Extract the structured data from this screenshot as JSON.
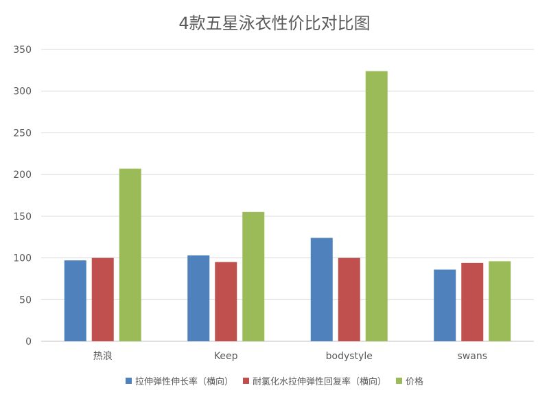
{
  "chart_data": {
    "type": "bar",
    "title": "4款五星泳衣性价比对比图",
    "categories": [
      "热浪",
      "Keep",
      "bodystyle",
      "swans"
    ],
    "series": [
      {
        "name": "拉伸弹性伸长率（横向）",
        "color": "#4f81bd",
        "values": [
          97,
          103,
          124,
          86
        ]
      },
      {
        "name": "耐氯化水拉伸弹性回复率（横向）",
        "color": "#c0504d",
        "values": [
          100,
          95,
          100,
          94
        ]
      },
      {
        "name": "价格",
        "color": "#9bbb59",
        "values": [
          207,
          155,
          324,
          96
        ]
      }
    ],
    "ylim": [
      0,
      350
    ],
    "yticks": [
      0,
      50,
      100,
      150,
      200,
      250,
      300,
      350
    ],
    "xlabel": "",
    "ylabel": "",
    "grid": true,
    "legend": "bottom"
  }
}
